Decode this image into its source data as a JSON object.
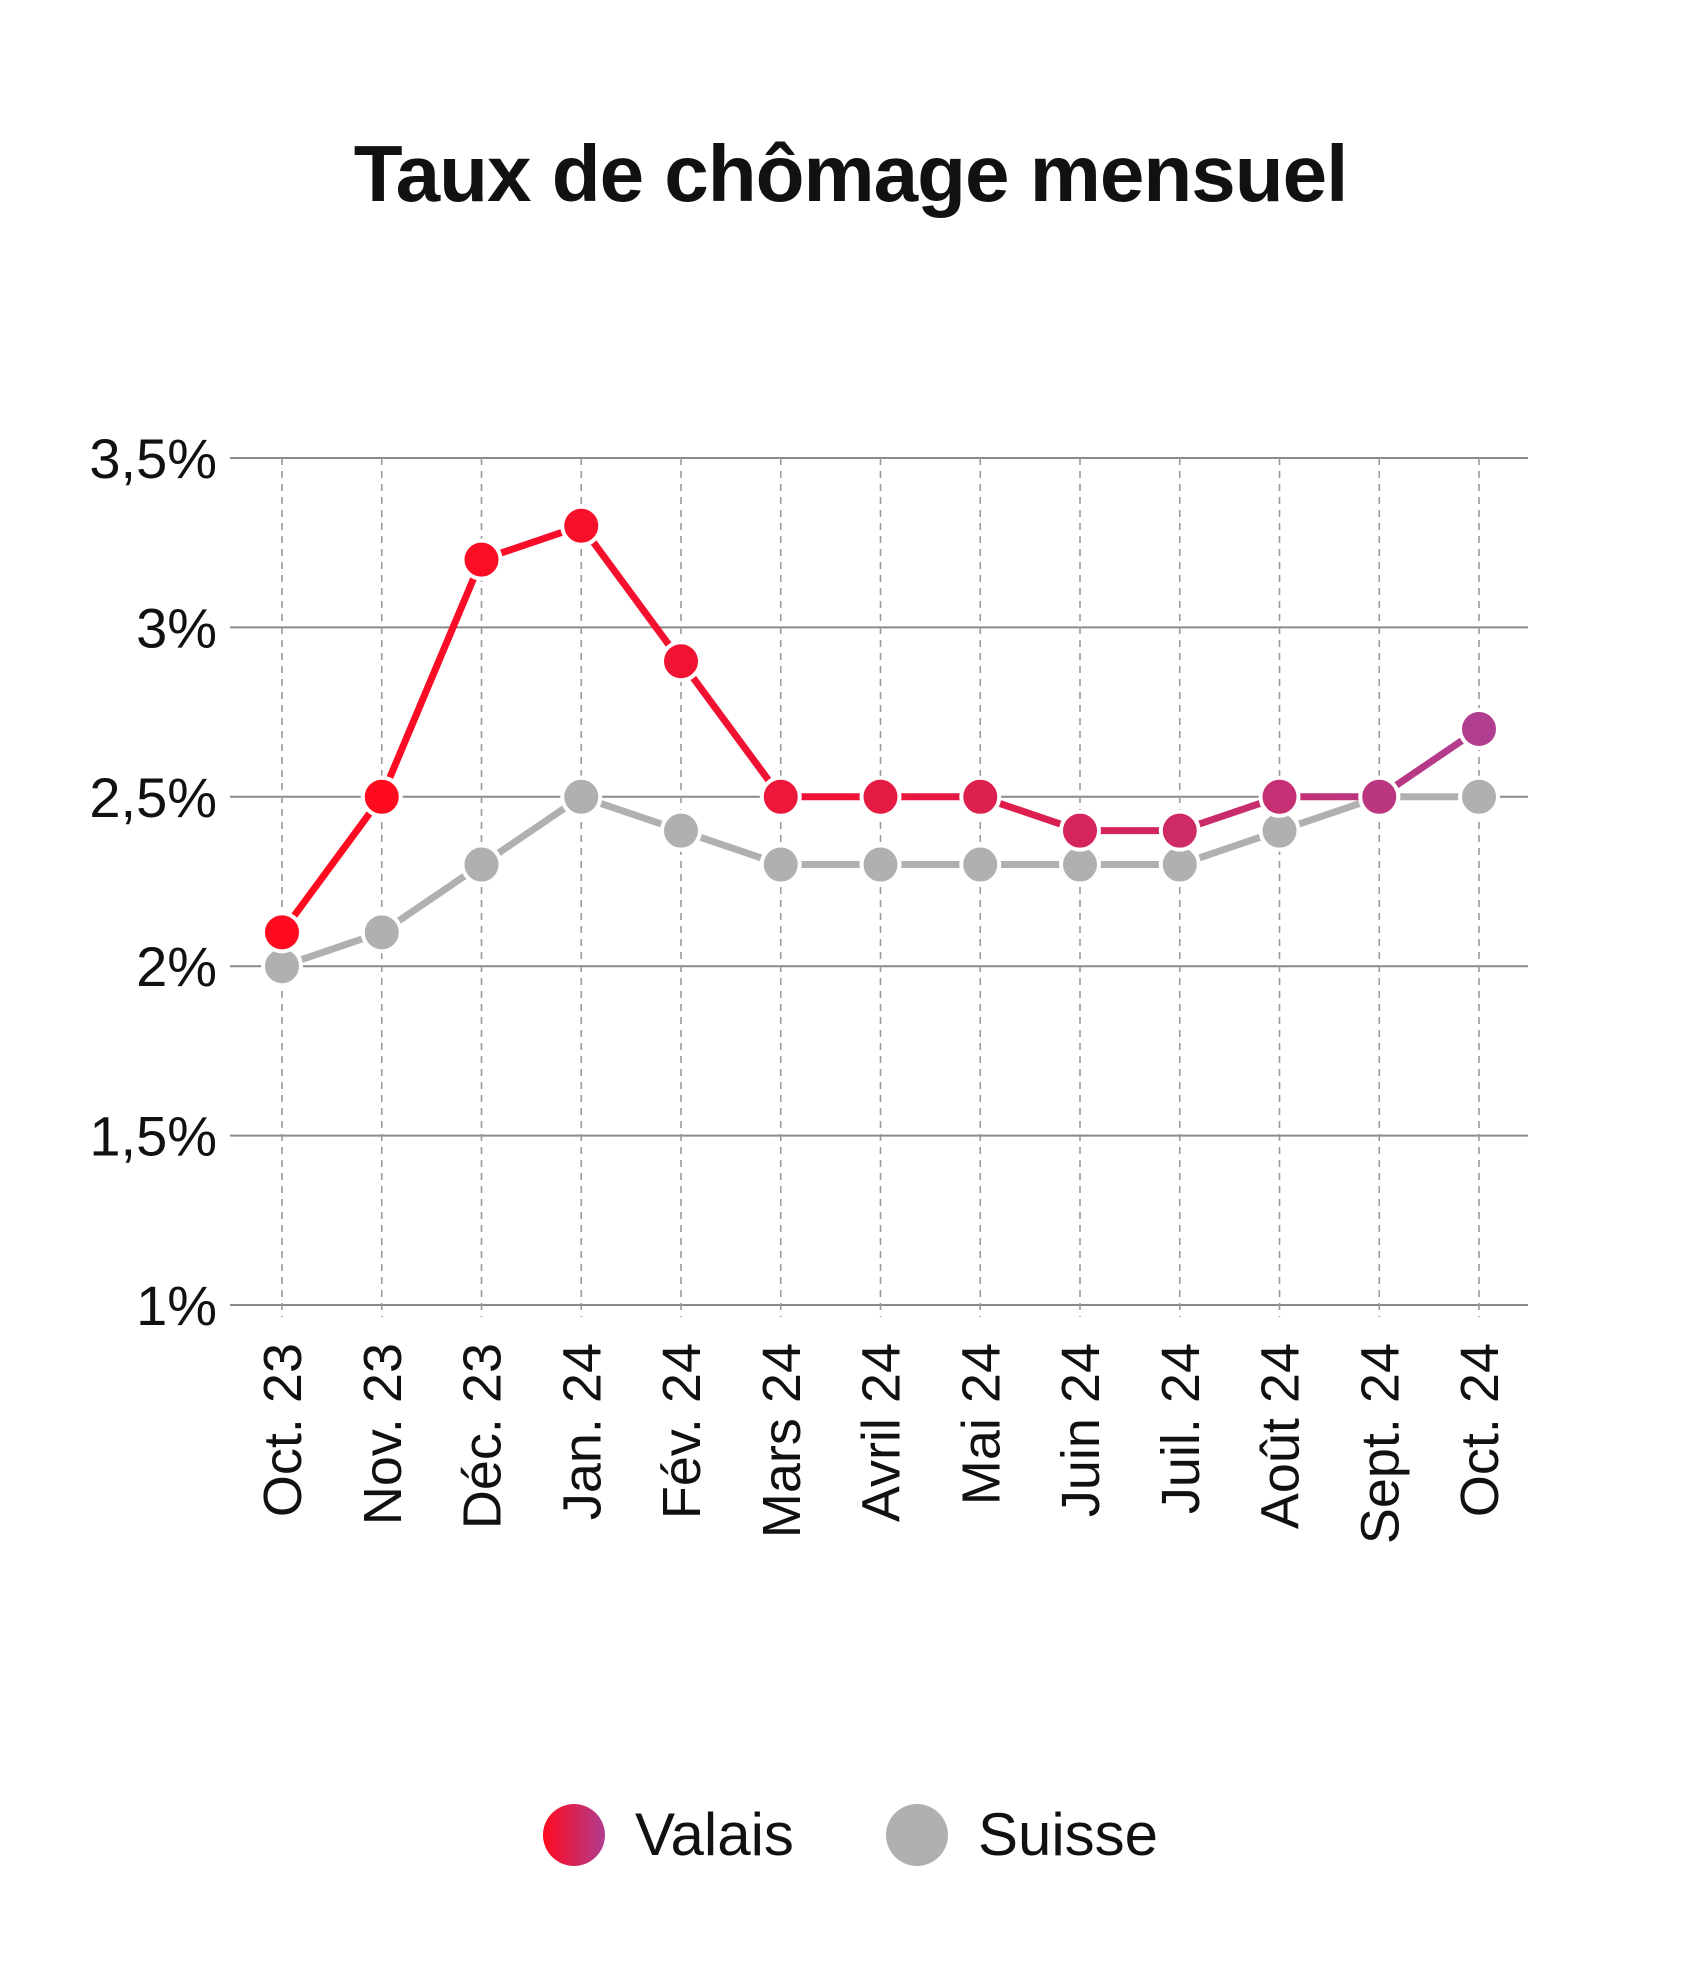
{
  "chart_data": {
    "type": "line",
    "title": "Taux de chômage mensuel",
    "xlabel": "",
    "ylabel": "",
    "categories": [
      "Oct. 23",
      "Nov. 23",
      "Déc. 23",
      "Jan. 24",
      "Fév. 24",
      "Mars 24",
      "Avril 24",
      "Mai 24",
      "Juin 24",
      "Juil. 24",
      "Août 24",
      "Sept. 24",
      "Oct. 24"
    ],
    "ylim": [
      1,
      3.5
    ],
    "yticks": [
      1,
      1.5,
      2,
      2.5,
      3,
      3.5
    ],
    "ytick_labels": [
      "1%",
      "1,5%",
      "2%",
      "2,5%",
      "3%",
      "3,5%"
    ],
    "grid": "horizontal solid, vertical dashed",
    "legend_position": "bottom",
    "series": [
      {
        "name": "Valais",
        "values": [
          2.1,
          2.5,
          3.2,
          3.3,
          2.9,
          2.5,
          2.5,
          2.5,
          2.4,
          2.4,
          2.5,
          2.5,
          2.7
        ],
        "color_start": "#ff0a1e",
        "color_end": "#b03d90"
      },
      {
        "name": "Suisse",
        "values": [
          2.0,
          2.1,
          2.3,
          2.5,
          2.4,
          2.3,
          2.3,
          2.3,
          2.3,
          2.3,
          2.4,
          2.5,
          2.5
        ],
        "color": "#b0b0b0"
      }
    ]
  },
  "legend": {
    "items": [
      {
        "label": "Valais"
      },
      {
        "label": "Suisse"
      }
    ]
  },
  "colors": {
    "grid_solid": "#8a8a8a",
    "grid_dashed": "#9a9a9a",
    "text": "#111111"
  }
}
